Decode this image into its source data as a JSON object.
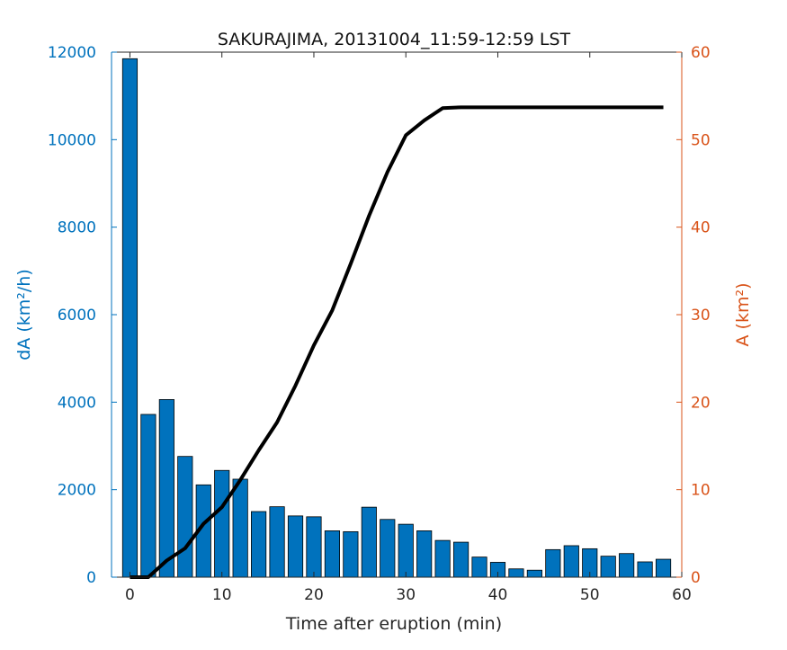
{
  "chart_data": {
    "type": "bar",
    "title": "SAKURAJIMA, 20131004_11:59-12:59 LST",
    "xlabel": "Time after eruption (min)",
    "ylabel_left": "dA (km²/h)",
    "ylabel_right": "A (km²)",
    "xlim": [
      -2,
      60
    ],
    "ylim_left": [
      0,
      12000
    ],
    "ylim_right": [
      0,
      60
    ],
    "x_ticks": [
      "0",
      "10",
      "20",
      "30",
      "40",
      "50",
      "60"
    ],
    "y_left_ticks": [
      "0",
      "2000",
      "4000",
      "6000",
      "8000",
      "10000",
      "12000"
    ],
    "y_right_ticks": [
      "0",
      "10",
      "20",
      "30",
      "40",
      "50",
      "60"
    ],
    "grid": false,
    "colors": {
      "bars": "#0072BD",
      "left_axis": "#0072BD",
      "right_axis": "#D95319",
      "line": "#000000"
    },
    "series": [
      {
        "type": "bar",
        "axis": "left",
        "x": [
          0,
          2,
          4,
          6,
          8,
          10,
          12,
          14,
          16,
          18,
          20,
          22,
          24,
          26,
          28,
          30,
          32,
          34,
          36,
          38,
          40,
          42,
          44,
          46,
          48,
          50,
          52,
          54,
          56,
          58
        ],
        "values": [
          11850,
          3720,
          4060,
          2760,
          2110,
          2440,
          2240,
          1500,
          1610,
          1400,
          1380,
          1060,
          1040,
          1600,
          1320,
          1210,
          1060,
          840,
          800,
          460,
          340,
          190,
          160,
          630,
          720,
          650,
          480,
          540,
          350,
          410
        ]
      },
      {
        "type": "line",
        "axis": "right",
        "x": [
          0,
          2,
          4,
          6,
          8,
          10,
          12,
          14,
          16,
          18,
          20,
          22,
          24,
          26,
          28,
          30,
          32,
          34,
          36,
          38,
          40,
          42,
          44,
          46,
          48,
          50,
          52,
          54,
          56,
          58
        ],
        "values": [
          0,
          0,
          1.9,
          3.3,
          6.1,
          8.0,
          11.1,
          14.5,
          17.7,
          21.9,
          26.5,
          30.5,
          35.8,
          41.3,
          46.3,
          50.5,
          52.2,
          53.6,
          53.7,
          53.7,
          53.7,
          53.7,
          53.7,
          53.7,
          53.7,
          53.7,
          53.7,
          53.7,
          53.7,
          53.7
        ]
      }
    ]
  }
}
